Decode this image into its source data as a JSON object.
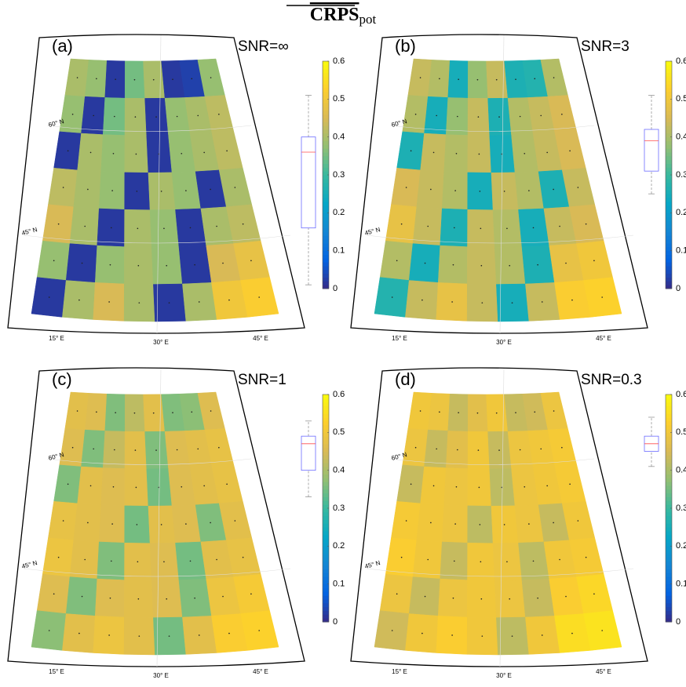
{
  "title": "CRPS",
  "title_sub": "pot",
  "colorbar": {
    "lim": [
      0,
      0.6
    ],
    "ticks": [
      0,
      0.1,
      0.2,
      0.3,
      0.4,
      0.5,
      0.6
    ]
  },
  "lat_labels": [
    "60° N",
    "45° N"
  ],
  "lon_labels": [
    "15° E",
    "30° E",
    "45° E"
  ],
  "panels": [
    {
      "label": "(a)",
      "snr": "SNR=∞",
      "grid": [
        [
          0.4,
          0.38,
          0.02,
          0.35,
          0.4,
          0.02,
          0.03,
          0.38
        ],
        [
          0.38,
          0.02,
          0.35,
          0.4,
          0.02,
          0.38,
          0.4,
          0.42
        ],
        [
          0.02,
          0.4,
          0.38,
          0.4,
          0.02,
          0.38,
          0.4,
          0.42
        ],
        [
          0.42,
          0.4,
          0.38,
          0.02,
          0.4,
          0.38,
          0.02,
          0.4
        ],
        [
          0.45,
          0.4,
          0.02,
          0.4,
          0.38,
          0.02,
          0.4,
          0.42
        ],
        [
          0.38,
          0.02,
          0.38,
          0.4,
          0.38,
          0.02,
          0.45,
          0.48
        ],
        [
          0.02,
          0.4,
          0.45,
          0.4,
          0.02,
          0.4,
          0.5,
          0.52
        ]
      ],
      "box": {
        "low": 0.01,
        "q1": 0.16,
        "median": 0.36,
        "q3": 0.4,
        "high": 0.51
      }
    },
    {
      "label": "(b)",
      "snr": "SNR=3",
      "grid": [
        [
          0.43,
          0.41,
          0.25,
          0.38,
          0.43,
          0.26,
          0.27,
          0.41
        ],
        [
          0.41,
          0.25,
          0.38,
          0.43,
          0.26,
          0.41,
          0.43,
          0.45
        ],
        [
          0.26,
          0.43,
          0.41,
          0.43,
          0.25,
          0.41,
          0.43,
          0.45
        ],
        [
          0.45,
          0.43,
          0.41,
          0.25,
          0.43,
          0.41,
          0.26,
          0.43
        ],
        [
          0.48,
          0.43,
          0.26,
          0.43,
          0.41,
          0.25,
          0.43,
          0.45
        ],
        [
          0.41,
          0.25,
          0.41,
          0.43,
          0.41,
          0.26,
          0.48,
          0.5
        ],
        [
          0.27,
          0.43,
          0.48,
          0.43,
          0.25,
          0.43,
          0.52,
          0.53
        ]
      ],
      "box": {
        "low": 0.25,
        "q1": 0.31,
        "median": 0.39,
        "q3": 0.42,
        "high": 0.51
      }
    },
    {
      "label": "(c)",
      "snr": "SNR=1",
      "grid": [
        [
          0.47,
          0.46,
          0.36,
          0.42,
          0.47,
          0.36,
          0.37,
          0.46
        ],
        [
          0.46,
          0.36,
          0.43,
          0.47,
          0.36,
          0.46,
          0.47,
          0.48
        ],
        [
          0.36,
          0.47,
          0.46,
          0.47,
          0.35,
          0.46,
          0.47,
          0.48
        ],
        [
          0.48,
          0.47,
          0.46,
          0.35,
          0.47,
          0.46,
          0.36,
          0.47
        ],
        [
          0.49,
          0.47,
          0.36,
          0.47,
          0.46,
          0.35,
          0.47,
          0.48
        ],
        [
          0.46,
          0.36,
          0.46,
          0.47,
          0.46,
          0.36,
          0.49,
          0.51
        ],
        [
          0.37,
          0.47,
          0.49,
          0.47,
          0.35,
          0.47,
          0.52,
          0.53
        ]
      ],
      "box": {
        "low": 0.33,
        "q1": 0.4,
        "median": 0.47,
        "q3": 0.49,
        "high": 0.53
      }
    },
    {
      "label": "(d)",
      "snr": "SNR=0.3",
      "grid": [
        [
          0.5,
          0.49,
          0.43,
          0.47,
          0.5,
          0.43,
          0.44,
          0.49
        ],
        [
          0.49,
          0.43,
          0.47,
          0.5,
          0.43,
          0.49,
          0.5,
          0.51
        ],
        [
          0.43,
          0.5,
          0.49,
          0.5,
          0.42,
          0.49,
          0.5,
          0.51
        ],
        [
          0.51,
          0.5,
          0.49,
          0.42,
          0.5,
          0.49,
          0.43,
          0.5
        ],
        [
          0.52,
          0.5,
          0.43,
          0.5,
          0.49,
          0.42,
          0.5,
          0.51
        ],
        [
          0.49,
          0.43,
          0.49,
          0.5,
          0.49,
          0.43,
          0.52,
          0.54
        ],
        [
          0.44,
          0.5,
          0.52,
          0.5,
          0.42,
          0.5,
          0.55,
          0.56
        ]
      ],
      "box": {
        "low": 0.41,
        "q1": 0.45,
        "median": 0.47,
        "q3": 0.49,
        "high": 0.54
      }
    }
  ]
}
